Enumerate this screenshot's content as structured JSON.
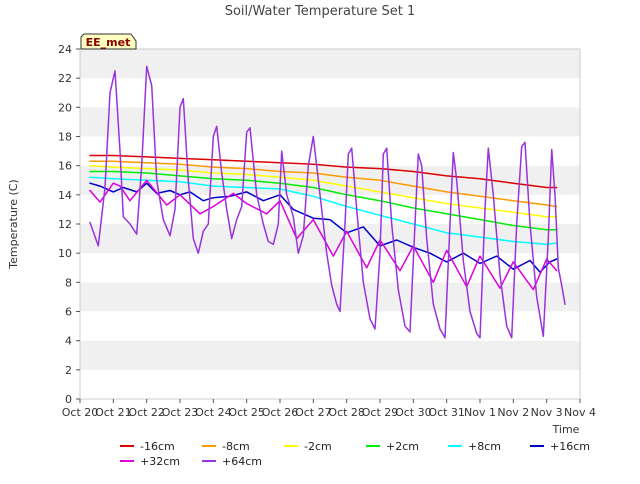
{
  "chart_data": {
    "type": "line",
    "title": "Soil/Water Temperature Set 1",
    "xlabel": "Time",
    "ylabel": "Temperature (C)",
    "badge": "EE_met",
    "xlim": [
      0,
      15
    ],
    "ylim": [
      0,
      24
    ],
    "x_ticks": [
      {
        "x": 0,
        "label": "Oct 20"
      },
      {
        "x": 1,
        "label": "Oct 21"
      },
      {
        "x": 2,
        "label": "Oct 22"
      },
      {
        "x": 3,
        "label": "Oct 23"
      },
      {
        "x": 4,
        "label": "Oct 24"
      },
      {
        "x": 5,
        "label": "Oct 25"
      },
      {
        "x": 6,
        "label": "Oct 26"
      },
      {
        "x": 7,
        "label": "Oct 27"
      },
      {
        "x": 8,
        "label": "Oct 28"
      },
      {
        "x": 9,
        "label": "Oct 29"
      },
      {
        "x": 10,
        "label": "Oct 30"
      },
      {
        "x": 11,
        "label": "Oct 31"
      },
      {
        "x": 12,
        "label": "Nov 1"
      },
      {
        "x": 13,
        "label": "Nov 2"
      },
      {
        "x": 14,
        "label": "Nov 3"
      },
      {
        "x": 15,
        "label": "Nov 4"
      }
    ],
    "y_ticks": [
      0,
      2,
      4,
      6,
      8,
      10,
      12,
      14,
      16,
      18,
      20,
      22,
      24
    ],
    "grid": "horizontal alternating bands",
    "legend_position": "bottom",
    "series": [
      {
        "name": "-16cm",
        "color": "#dd0000",
        "width": 1.5,
        "points": [
          [
            0.3,
            16.7
          ],
          [
            1,
            16.7
          ],
          [
            2,
            16.6
          ],
          [
            3,
            16.5
          ],
          [
            4,
            16.4
          ],
          [
            5,
            16.3
          ],
          [
            6,
            16.2
          ],
          [
            7,
            16.1
          ],
          [
            8,
            15.9
          ],
          [
            9,
            15.8
          ],
          [
            10,
            15.6
          ],
          [
            11,
            15.3
          ],
          [
            12,
            15.1
          ],
          [
            13,
            14.8
          ],
          [
            14,
            14.5
          ],
          [
            14.3,
            14.5
          ]
        ]
      },
      {
        "name": "-8cm",
        "color": "#ff9900",
        "width": 1.5,
        "points": [
          [
            0.3,
            16.3
          ],
          [
            1,
            16.3
          ],
          [
            2,
            16.2
          ],
          [
            3,
            16.1
          ],
          [
            4,
            15.9
          ],
          [
            5,
            15.8
          ],
          [
            6,
            15.6
          ],
          [
            7,
            15.5
          ],
          [
            8,
            15.2
          ],
          [
            9,
            15.0
          ],
          [
            10,
            14.6
          ],
          [
            11,
            14.2
          ],
          [
            12,
            13.9
          ],
          [
            13,
            13.6
          ],
          [
            14,
            13.3
          ],
          [
            14.3,
            13.2
          ]
        ]
      },
      {
        "name": "-2cm",
        "color": "#ffff00",
        "width": 1.5,
        "points": [
          [
            0.3,
            16.0
          ],
          [
            1,
            15.9
          ],
          [
            2,
            15.8
          ],
          [
            3,
            15.7
          ],
          [
            4,
            15.5
          ],
          [
            5,
            15.4
          ],
          [
            6,
            15.2
          ],
          [
            7,
            15.0
          ],
          [
            8,
            14.6
          ],
          [
            9,
            14.2
          ],
          [
            10,
            13.8
          ],
          [
            11,
            13.4
          ],
          [
            12,
            13.1
          ],
          [
            13,
            12.8
          ],
          [
            14,
            12.5
          ],
          [
            14.3,
            12.5
          ]
        ]
      },
      {
        "name": "+2cm",
        "color": "#00ee00",
        "width": 1.5,
        "points": [
          [
            0.3,
            15.6
          ],
          [
            1,
            15.6
          ],
          [
            2,
            15.5
          ],
          [
            3,
            15.3
          ],
          [
            4,
            15.1
          ],
          [
            5,
            15.0
          ],
          [
            6,
            14.8
          ],
          [
            7,
            14.5
          ],
          [
            8,
            14.0
          ],
          [
            9,
            13.6
          ],
          [
            10,
            13.1
          ],
          [
            11,
            12.7
          ],
          [
            12,
            12.3
          ],
          [
            13,
            11.9
          ],
          [
            14,
            11.6
          ],
          [
            14.3,
            11.6
          ]
        ]
      },
      {
        "name": "+8cm",
        "color": "#00ffff",
        "width": 1.5,
        "points": [
          [
            0.3,
            15.2
          ],
          [
            1,
            15.1
          ],
          [
            2,
            15.0
          ],
          [
            3,
            14.9
          ],
          [
            4,
            14.6
          ],
          [
            5,
            14.5
          ],
          [
            6,
            14.4
          ],
          [
            7,
            13.9
          ],
          [
            8,
            13.2
          ],
          [
            9,
            12.6
          ],
          [
            10,
            12.0
          ],
          [
            11,
            11.4
          ],
          [
            12,
            11.1
          ],
          [
            13,
            10.8
          ],
          [
            14,
            10.6
          ],
          [
            14.3,
            10.7
          ]
        ]
      },
      {
        "name": "+16cm",
        "color": "#0000cc",
        "width": 1.5,
        "points": [
          [
            0.3,
            14.8
          ],
          [
            0.6,
            14.6
          ],
          [
            1,
            14.2
          ],
          [
            1.3,
            14.5
          ],
          [
            1.7,
            14.2
          ],
          [
            2,
            14.8
          ],
          [
            2.3,
            14.1
          ],
          [
            2.7,
            14.3
          ],
          [
            3,
            14.0
          ],
          [
            3.3,
            14.2
          ],
          [
            3.7,
            13.6
          ],
          [
            4,
            13.8
          ],
          [
            4.5,
            13.9
          ],
          [
            5,
            14.2
          ],
          [
            5.5,
            13.6
          ],
          [
            6,
            14.0
          ],
          [
            6.4,
            13.0
          ],
          [
            7,
            12.4
          ],
          [
            7.5,
            12.3
          ],
          [
            8,
            11.4
          ],
          [
            8.5,
            11.8
          ],
          [
            9,
            10.5
          ],
          [
            9.5,
            10.9
          ],
          [
            10,
            10.4
          ],
          [
            10.5,
            10.0
          ],
          [
            11,
            9.4
          ],
          [
            11.5,
            10.0
          ],
          [
            12,
            9.3
          ],
          [
            12.5,
            9.8
          ],
          [
            13,
            8.9
          ],
          [
            13.5,
            9.5
          ],
          [
            13.8,
            8.7
          ],
          [
            14.1,
            9.4
          ],
          [
            14.3,
            9.6
          ]
        ]
      },
      {
        "name": "+32cm",
        "color": "#dd00dd",
        "width": 1.5,
        "points": [
          [
            0.3,
            14.3
          ],
          [
            0.6,
            13.5
          ],
          [
            1,
            14.8
          ],
          [
            1.2,
            14.6
          ],
          [
            1.5,
            13.6
          ],
          [
            2,
            15.0
          ],
          [
            2.6,
            13.3
          ],
          [
            3,
            14.0
          ],
          [
            3.6,
            12.7
          ],
          [
            4,
            13.2
          ],
          [
            4.6,
            14.1
          ],
          [
            5,
            13.4
          ],
          [
            5.6,
            12.7
          ],
          [
            6,
            13.6
          ],
          [
            6.5,
            11.0
          ],
          [
            7,
            12.3
          ],
          [
            7.6,
            9.8
          ],
          [
            8,
            11.5
          ],
          [
            8.6,
            9.0
          ],
          [
            9,
            10.9
          ],
          [
            9.6,
            8.8
          ],
          [
            10,
            10.5
          ],
          [
            10.6,
            8.0
          ],
          [
            11,
            10.2
          ],
          [
            11.6,
            7.7
          ],
          [
            12,
            9.8
          ],
          [
            12.6,
            7.6
          ],
          [
            13,
            9.4
          ],
          [
            13.6,
            7.5
          ],
          [
            14,
            9.6
          ],
          [
            14.3,
            8.8
          ]
        ]
      },
      {
        "name": "+64cm",
        "color": "#9933dd",
        "width": 1.5,
        "points": [
          [
            0.3,
            12.1
          ],
          [
            0.55,
            10.5
          ],
          [
            0.75,
            14.5
          ],
          [
            0.9,
            21.0
          ],
          [
            1.05,
            22.5
          ],
          [
            1.2,
            17.0
          ],
          [
            1.3,
            12.5
          ],
          [
            1.5,
            12.0
          ],
          [
            1.7,
            11.3
          ],
          [
            1.85,
            16.0
          ],
          [
            2.0,
            22.8
          ],
          [
            2.15,
            21.5
          ],
          [
            2.3,
            15.0
          ],
          [
            2.5,
            12.3
          ],
          [
            2.7,
            11.2
          ],
          [
            2.85,
            13.0
          ],
          [
            3.0,
            20.0
          ],
          [
            3.1,
            20.6
          ],
          [
            3.25,
            15.0
          ],
          [
            3.4,
            11.0
          ],
          [
            3.55,
            10.0
          ],
          [
            3.7,
            11.5
          ],
          [
            3.85,
            12.0
          ],
          [
            4.0,
            18.0
          ],
          [
            4.1,
            18.7
          ],
          [
            4.25,
            15.5
          ],
          [
            4.4,
            13.0
          ],
          [
            4.55,
            11.0
          ],
          [
            4.7,
            12.3
          ],
          [
            4.85,
            13.2
          ],
          [
            5.0,
            18.3
          ],
          [
            5.1,
            18.6
          ],
          [
            5.3,
            14.0
          ],
          [
            5.5,
            12.0
          ],
          [
            5.65,
            10.8
          ],
          [
            5.8,
            10.6
          ],
          [
            5.95,
            12.0
          ],
          [
            6.05,
            17.0
          ],
          [
            6.2,
            14.0
          ],
          [
            6.4,
            12.5
          ],
          [
            6.55,
            10.0
          ],
          [
            6.7,
            11.2
          ],
          [
            6.85,
            16.0
          ],
          [
            7.0,
            18.0
          ],
          [
            7.2,
            14.0
          ],
          [
            7.4,
            10.0
          ],
          [
            7.55,
            7.8
          ],
          [
            7.7,
            6.5
          ],
          [
            7.8,
            6.0
          ],
          [
            7.95,
            12.0
          ],
          [
            8.05,
            16.8
          ],
          [
            8.15,
            17.2
          ],
          [
            8.3,
            13.0
          ],
          [
            8.5,
            8.0
          ],
          [
            8.7,
            5.5
          ],
          [
            8.85,
            4.8
          ],
          [
            9.0,
            10.0
          ],
          [
            9.1,
            16.8
          ],
          [
            9.2,
            17.2
          ],
          [
            9.35,
            12.0
          ],
          [
            9.55,
            7.5
          ],
          [
            9.75,
            5.0
          ],
          [
            9.9,
            4.6
          ],
          [
            10.05,
            12.0
          ],
          [
            10.15,
            16.8
          ],
          [
            10.25,
            16.0
          ],
          [
            10.4,
            11.0
          ],
          [
            10.6,
            6.5
          ],
          [
            10.8,
            4.8
          ],
          [
            10.95,
            4.2
          ],
          [
            11.1,
            12.0
          ],
          [
            11.2,
            16.9
          ],
          [
            11.3,
            15.0
          ],
          [
            11.5,
            9.5
          ],
          [
            11.7,
            6.0
          ],
          [
            11.9,
            4.5
          ],
          [
            12.0,
            4.2
          ],
          [
            12.15,
            13.0
          ],
          [
            12.25,
            17.2
          ],
          [
            12.4,
            14.0
          ],
          [
            12.6,
            8.5
          ],
          [
            12.8,
            5.0
          ],
          [
            12.95,
            4.2
          ],
          [
            13.1,
            12.0
          ],
          [
            13.25,
            17.3
          ],
          [
            13.35,
            17.6
          ],
          [
            13.5,
            12.0
          ],
          [
            13.7,
            7.0
          ],
          [
            13.9,
            4.3
          ],
          [
            14.05,
            11.0
          ],
          [
            14.15,
            17.1
          ],
          [
            14.25,
            14.0
          ],
          [
            14.35,
            9.0
          ],
          [
            14.45,
            7.8
          ],
          [
            14.55,
            6.5
          ]
        ]
      }
    ]
  }
}
